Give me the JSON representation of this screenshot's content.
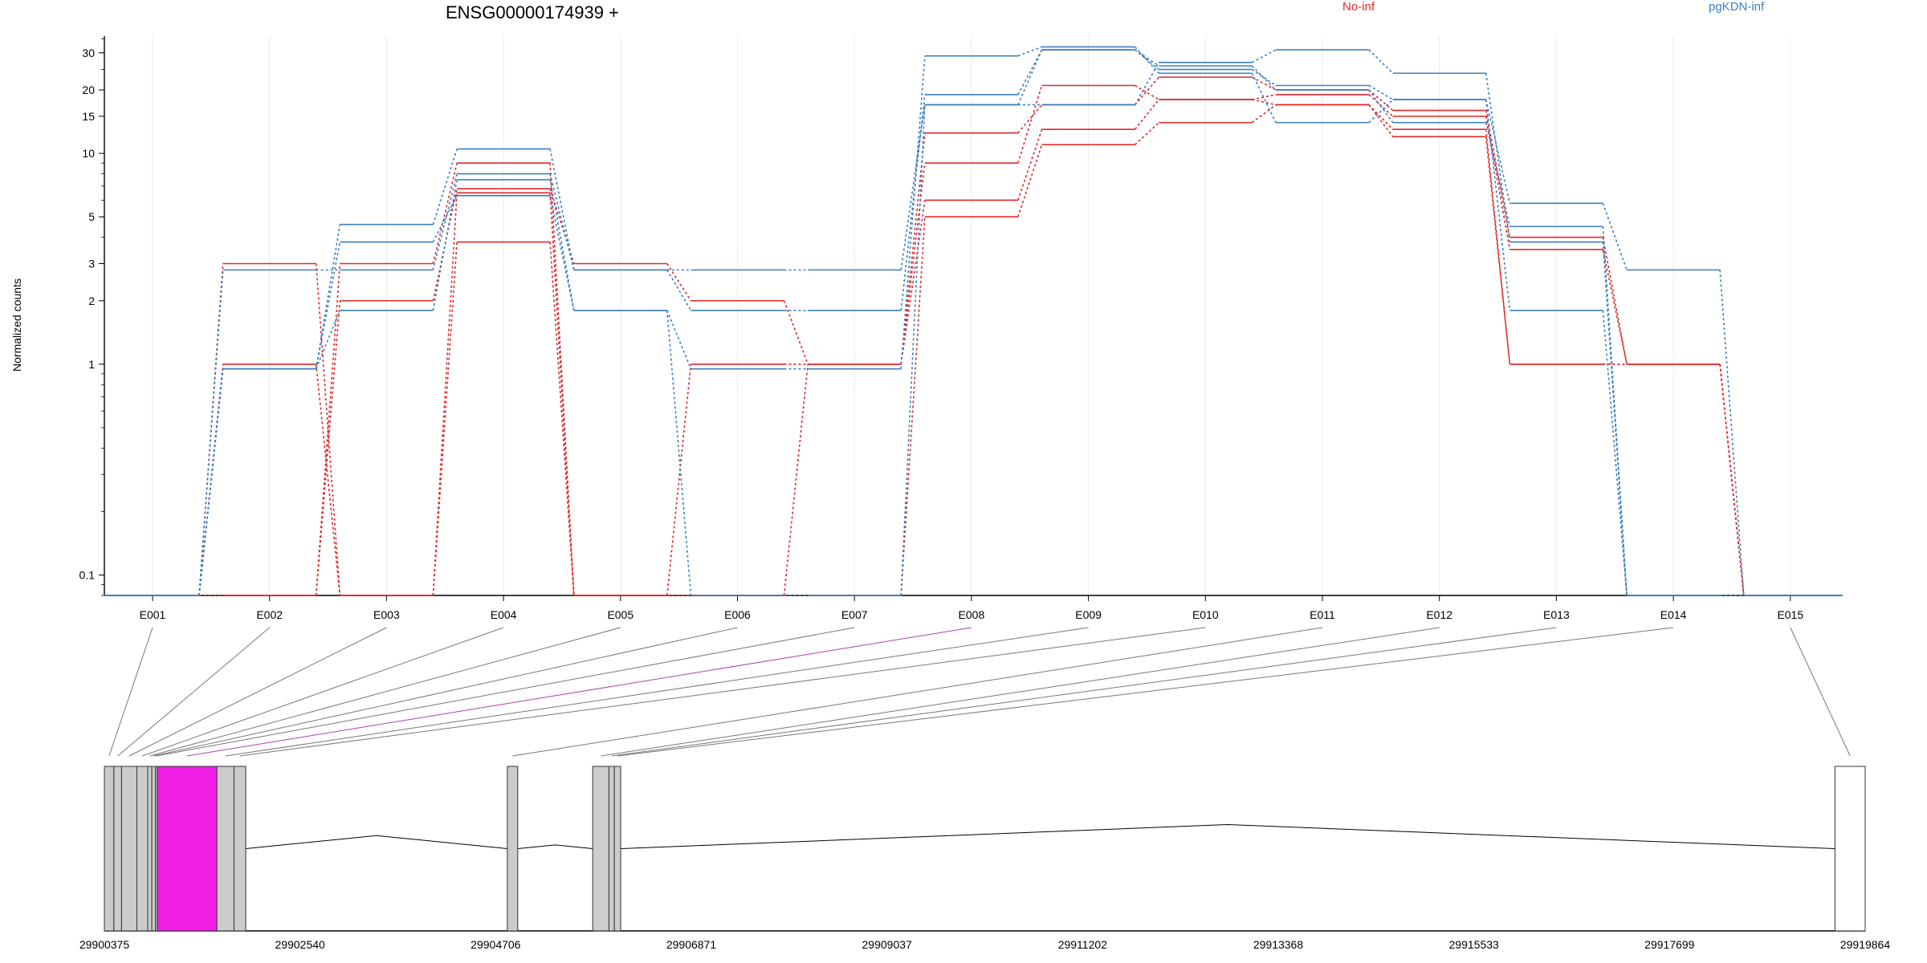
{
  "chart_data": {
    "type": "line",
    "title": "ENSG00000174939 +",
    "ylabel": "Normalized counts",
    "y_scale": "log",
    "y_ticks": [
      "0.1",
      "1",
      "2",
      "3",
      "5",
      "10",
      "15",
      "20",
      "30"
    ],
    "exons": [
      "E001",
      "E002",
      "E003",
      "E004",
      "E005",
      "E006",
      "E007",
      "E008",
      "E009",
      "E010",
      "E011",
      "E012",
      "E013",
      "E014",
      "E015"
    ],
    "legend": [
      {
        "name": "No-inf",
        "color": "#e0282a"
      },
      {
        "name": "pgKDN-inf",
        "color": "#3c7fc0"
      }
    ],
    "series": [
      {
        "group": "No-inf",
        "values": [
          0.08,
          3,
          0.08,
          3.8,
          0.08,
          0.08,
          0.08,
          5,
          11,
          14,
          17,
          12,
          1,
          1,
          0.08
        ]
      },
      {
        "group": "No-inf",
        "values": [
          0.08,
          1,
          0.08,
          6.5,
          0.08,
          1,
          1,
          6,
          13,
          18,
          17,
          13,
          1,
          1,
          0.08
        ]
      },
      {
        "group": "No-inf",
        "values": [
          0.08,
          0.08,
          2,
          6.8,
          3,
          2,
          1,
          9,
          21,
          18,
          19,
          15,
          3.5,
          1,
          0.08
        ]
      },
      {
        "group": "No-inf",
        "values": [
          0.08,
          0.08,
          3,
          9,
          0.08,
          0.08,
          1,
          12.5,
          17,
          23,
          20,
          16,
          4,
          1,
          0.08
        ]
      },
      {
        "group": "pgKDN-inf",
        "values": [
          0.08,
          0.95,
          1.8,
          7.5,
          1.8,
          0.08,
          0.08,
          17,
          31,
          25,
          21,
          18,
          1.8,
          0.08,
          0.08
        ]
      },
      {
        "group": "pgKDN-inf",
        "values": [
          0.08,
          2.8,
          2.8,
          8,
          2.8,
          1.8,
          1.8,
          19,
          31,
          26,
          20,
          14,
          4.5,
          0.08,
          0.08
        ]
      },
      {
        "group": "pgKDN-inf",
        "values": [
          0.08,
          0.95,
          3.8,
          6.3,
          1.8,
          0.95,
          0.95,
          29,
          32,
          24,
          14,
          18,
          5.8,
          2.8,
          0.08
        ]
      },
      {
        "group": "pgKDN-inf",
        "values": [
          0.08,
          0.95,
          4.6,
          10.5,
          2.8,
          2.8,
          2.8,
          17,
          17,
          27,
          31,
          24,
          3.8,
          0.08,
          0.08
        ]
      }
    ],
    "gene_model": {
      "start": 29900375,
      "end": 29919864,
      "coordinate_labels": [
        "29900375",
        "29902540",
        "29904706",
        "29906871",
        "29909037",
        "29911202",
        "29913368",
        "29915533",
        "29917699",
        "29919864"
      ],
      "exons": [
        {
          "id": "E001",
          "start": 29900375,
          "end": 29900480
        },
        {
          "id": "E002",
          "start": 29900480,
          "end": 29900565
        },
        {
          "id": "E003",
          "start": 29900565,
          "end": 29900735
        },
        {
          "id": "E004",
          "start": 29900735,
          "end": 29900855
        },
        {
          "id": "E005",
          "start": 29900855,
          "end": 29900900
        },
        {
          "id": "E006",
          "start": 29900900,
          "end": 29900940
        },
        {
          "id": "E007",
          "start": 29900940,
          "end": 29900960
        },
        {
          "id": "E008",
          "start": 29900960,
          "end": 29901620
        },
        {
          "id": "E009",
          "start": 29901620,
          "end": 29901810
        },
        {
          "id": "E010",
          "start": 29901810,
          "end": 29901940
        },
        {
          "id": "E011",
          "start": 29904835,
          "end": 29904950
        },
        {
          "id": "E012",
          "start": 29905780,
          "end": 29905960
        },
        {
          "id": "E013",
          "start": 29905960,
          "end": 29906020
        },
        {
          "id": "E014",
          "start": 29906020,
          "end": 29906090
        },
        {
          "id": "E015",
          "start": 29919530,
          "end": 29919864
        }
      ],
      "highlight_exon": "E008",
      "highlight_color": "#f21ee6"
    }
  }
}
